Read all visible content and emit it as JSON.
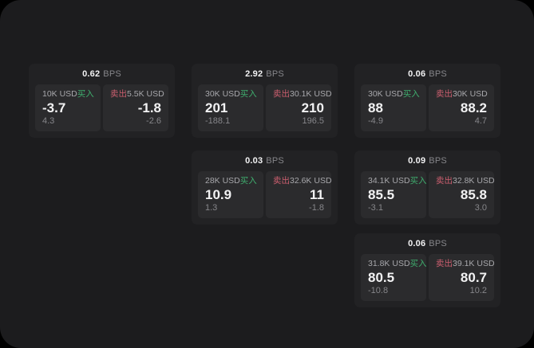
{
  "window": {
    "page_bg": "#000000",
    "surface_bg": "#1c1c1e"
  },
  "colors": {
    "buy_accent": "#3fae6e",
    "sell_accent": "#cc5f6f",
    "card_bg": "#222224",
    "panel_bg": "#2b2b2d"
  },
  "labels": {
    "bps_unit": "BPS",
    "buy": "买入",
    "sell": "卖出"
  },
  "cards": [
    {
      "row": 0,
      "col": 0,
      "bps": "0.62",
      "buy": {
        "amount": "10K USD",
        "value": "-3.7",
        "delta": "4.3"
      },
      "sell": {
        "amount": "5.5K USD",
        "value": "-1.8",
        "delta": "-2.6"
      }
    },
    {
      "row": 0,
      "col": 1,
      "bps": "2.92",
      "buy": {
        "amount": "30K USD",
        "value": "201",
        "delta": "-188.1"
      },
      "sell": {
        "amount": "30.1K USD",
        "value": "210",
        "delta": "196.5"
      }
    },
    {
      "row": 0,
      "col": 2,
      "bps": "0.06",
      "buy": {
        "amount": "30K USD",
        "value": "88",
        "delta": "-4.9"
      },
      "sell": {
        "amount": "30K USD",
        "value": "88.2",
        "delta": "4.7"
      }
    },
    {
      "row": 1,
      "col": 1,
      "bps": "0.03",
      "buy": {
        "amount": "28K USD",
        "value": "10.9",
        "delta": "1.3"
      },
      "sell": {
        "amount": "32.6K USD",
        "value": "11",
        "delta": "-1.8"
      }
    },
    {
      "row": 1,
      "col": 2,
      "bps": "0.09",
      "buy": {
        "amount": "34.1K USD",
        "value": "85.5",
        "delta": "-3.1"
      },
      "sell": {
        "amount": "32.8K USD",
        "value": "85.8",
        "delta": "3.0"
      }
    },
    {
      "row": 2,
      "col": 2,
      "bps": "0.06",
      "buy": {
        "amount": "31.8K USD",
        "value": "80.5",
        "delta": "-10.8"
      },
      "sell": {
        "amount": "39.1K USD",
        "value": "80.7",
        "delta": "10.2"
      }
    }
  ]
}
